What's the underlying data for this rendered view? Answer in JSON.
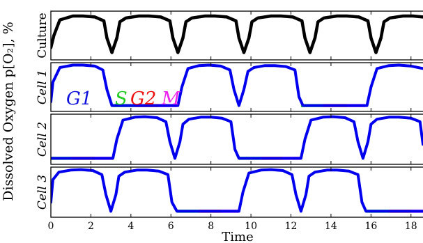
{
  "y_axis_label": "Dissolved Oxygen p[O₂], %",
  "x_axis_label": "Time",
  "x_ticks": [
    "0",
    "2",
    "4",
    "6",
    "8",
    "10",
    "12",
    "14",
    "16",
    "18"
  ],
  "phase_labels": {
    "g1": "G1",
    "s": "S",
    "g2": "G2",
    "m": "M"
  },
  "colors": {
    "culture": "#000000",
    "cell": "#0000ee",
    "s_phase": "#22dd22",
    "g2_phase": "#ee1111",
    "m_phase": "#ee22ee"
  },
  "chart_data": [
    {
      "type": "line",
      "panel_label": "Culture",
      "series": [
        {
          "x": [
            0.0,
            0.15,
            0.45,
            1.1,
            1.6,
            2.2,
            2.65,
            2.8,
            3.05,
            3.3,
            3.45,
            3.75,
            4.4,
            4.9,
            5.5,
            5.95,
            6.1,
            6.35,
            6.6,
            6.75,
            7.05,
            7.7,
            8.2,
            8.8,
            9.25,
            9.4,
            9.65,
            9.9,
            10.05,
            10.35,
            11.0,
            11.5,
            12.1,
            12.55,
            12.7,
            12.95,
            13.2,
            13.35,
            13.65,
            14.3,
            14.8,
            15.4,
            15.85,
            16.0,
            16.25,
            16.5,
            16.65,
            16.95,
            17.6,
            18.1,
            18.6
          ],
          "y": [
            0.25,
            0.5,
            0.82,
            0.9,
            0.9,
            0.88,
            0.8,
            0.45,
            0.15,
            0.45,
            0.78,
            0.86,
            0.9,
            0.9,
            0.88,
            0.8,
            0.45,
            0.15,
            0.45,
            0.78,
            0.86,
            0.9,
            0.9,
            0.88,
            0.8,
            0.45,
            0.15,
            0.45,
            0.78,
            0.86,
            0.9,
            0.9,
            0.88,
            0.8,
            0.45,
            0.15,
            0.45,
            0.78,
            0.86,
            0.9,
            0.9,
            0.88,
            0.8,
            0.45,
            0.15,
            0.45,
            0.78,
            0.86,
            0.9,
            0.9,
            0.88
          ]
        }
      ],
      "xlim": [
        0,
        18.6
      ]
    },
    {
      "type": "line",
      "panel_label": "Cell 1",
      "series": [
        {
          "x": [
            0.0,
            0.1,
            0.45,
            1.1,
            1.6,
            2.2,
            2.6,
            2.8,
            3.05,
            3.3,
            6.35,
            6.55,
            6.85,
            7.4,
            7.9,
            8.5,
            8.95,
            9.15,
            9.4,
            9.65,
            9.85,
            10.15,
            10.7,
            11.2,
            11.75,
            12.2,
            12.4,
            12.6,
            15.8,
            16.0,
            16.3,
            16.9,
            17.4,
            18.0,
            18.6
          ],
          "y": [
            0.2,
            0.6,
            0.9,
            0.95,
            0.95,
            0.93,
            0.85,
            0.45,
            0.12,
            0.12,
            0.12,
            0.5,
            0.88,
            0.94,
            0.95,
            0.93,
            0.85,
            0.45,
            0.12,
            0.45,
            0.82,
            0.9,
            0.94,
            0.94,
            0.92,
            0.85,
            0.3,
            0.12,
            0.12,
            0.5,
            0.88,
            0.94,
            0.95,
            0.93,
            0.88
          ]
        }
      ],
      "phases": [
        {
          "phase": "S",
          "start": 3.1,
          "end": 4.2
        },
        {
          "phase": "G2",
          "start": 4.2,
          "end": 5.4
        },
        {
          "phase": "M",
          "start": 5.4,
          "end": 6.3
        },
        {
          "phase": "S",
          "start": 12.5,
          "end": 13.6
        },
        {
          "phase": "G2",
          "start": 13.6,
          "end": 14.8
        },
        {
          "phase": "M",
          "start": 14.8,
          "end": 15.7
        }
      ],
      "xlim": [
        0,
        18.6
      ]
    },
    {
      "type": "line",
      "panel_label": "Cell 2",
      "series": [
        {
          "x": [
            0.0,
            3.1,
            3.3,
            3.6,
            4.2,
            4.7,
            5.3,
            5.75,
            5.95,
            6.2,
            6.45,
            6.6,
            6.9,
            7.5,
            8.0,
            8.55,
            9.0,
            9.2,
            9.4,
            12.5,
            12.7,
            13.0,
            13.6,
            14.1,
            14.7,
            15.15,
            15.35,
            15.6,
            15.85,
            16.0,
            16.3,
            16.9,
            17.4,
            18.0,
            18.45,
            18.6
          ],
          "y": [
            0.12,
            0.12,
            0.5,
            0.88,
            0.94,
            0.95,
            0.93,
            0.85,
            0.45,
            0.12,
            0.45,
            0.8,
            0.9,
            0.94,
            0.94,
            0.92,
            0.85,
            0.3,
            0.12,
            0.12,
            0.5,
            0.88,
            0.94,
            0.95,
            0.93,
            0.85,
            0.45,
            0.12,
            0.45,
            0.8,
            0.9,
            0.94,
            0.94,
            0.92,
            0.85,
            0.4
          ]
        }
      ],
      "phases": [
        {
          "phase": "S",
          "start": 0.0,
          "end": 1.0
        },
        {
          "phase": "G2",
          "start": 1.0,
          "end": 2.2
        },
        {
          "phase": "M",
          "start": 2.2,
          "end": 3.1
        },
        {
          "phase": "S",
          "start": 9.4,
          "end": 10.5
        },
        {
          "phase": "G2",
          "start": 10.5,
          "end": 11.6
        },
        {
          "phase": "M",
          "start": 11.6,
          "end": 12.5
        }
      ],
      "xlim": [
        0,
        18.6
      ]
    },
    {
      "type": "line",
      "panel_label": "Cell 3",
      "series": [
        {
          "x": [
            0.0,
            0.1,
            0.4,
            1.0,
            1.5,
            2.1,
            2.55,
            2.75,
            3.0,
            3.25,
            3.4,
            3.7,
            4.3,
            4.8,
            5.4,
            5.85,
            6.05,
            6.3,
            9.4,
            9.6,
            9.9,
            10.5,
            11.0,
            11.6,
            12.05,
            12.25,
            12.5,
            12.75,
            12.9,
            13.2,
            13.8,
            14.3,
            14.9,
            15.35,
            15.55,
            15.75,
            18.6
          ],
          "y": [
            0.3,
            0.75,
            0.9,
            0.94,
            0.95,
            0.93,
            0.85,
            0.45,
            0.12,
            0.45,
            0.82,
            0.9,
            0.94,
            0.94,
            0.92,
            0.85,
            0.3,
            0.12,
            0.12,
            0.5,
            0.88,
            0.94,
            0.95,
            0.93,
            0.85,
            0.45,
            0.12,
            0.45,
            0.82,
            0.9,
            0.94,
            0.94,
            0.92,
            0.85,
            0.3,
            0.12,
            0.12
          ]
        }
      ],
      "phases": [
        {
          "phase": "S",
          "start": 6.3,
          "end": 7.4
        },
        {
          "phase": "G2",
          "start": 7.4,
          "end": 8.5
        },
        {
          "phase": "M",
          "start": 8.5,
          "end": 9.4
        },
        {
          "phase": "S",
          "start": 15.75,
          "end": 16.9
        },
        {
          "phase": "G2",
          "start": 16.9,
          "end": 18.0
        },
        {
          "phase": "M",
          "start": 18.0,
          "end": 18.6
        }
      ],
      "xlim": [
        0,
        18.6
      ]
    }
  ]
}
